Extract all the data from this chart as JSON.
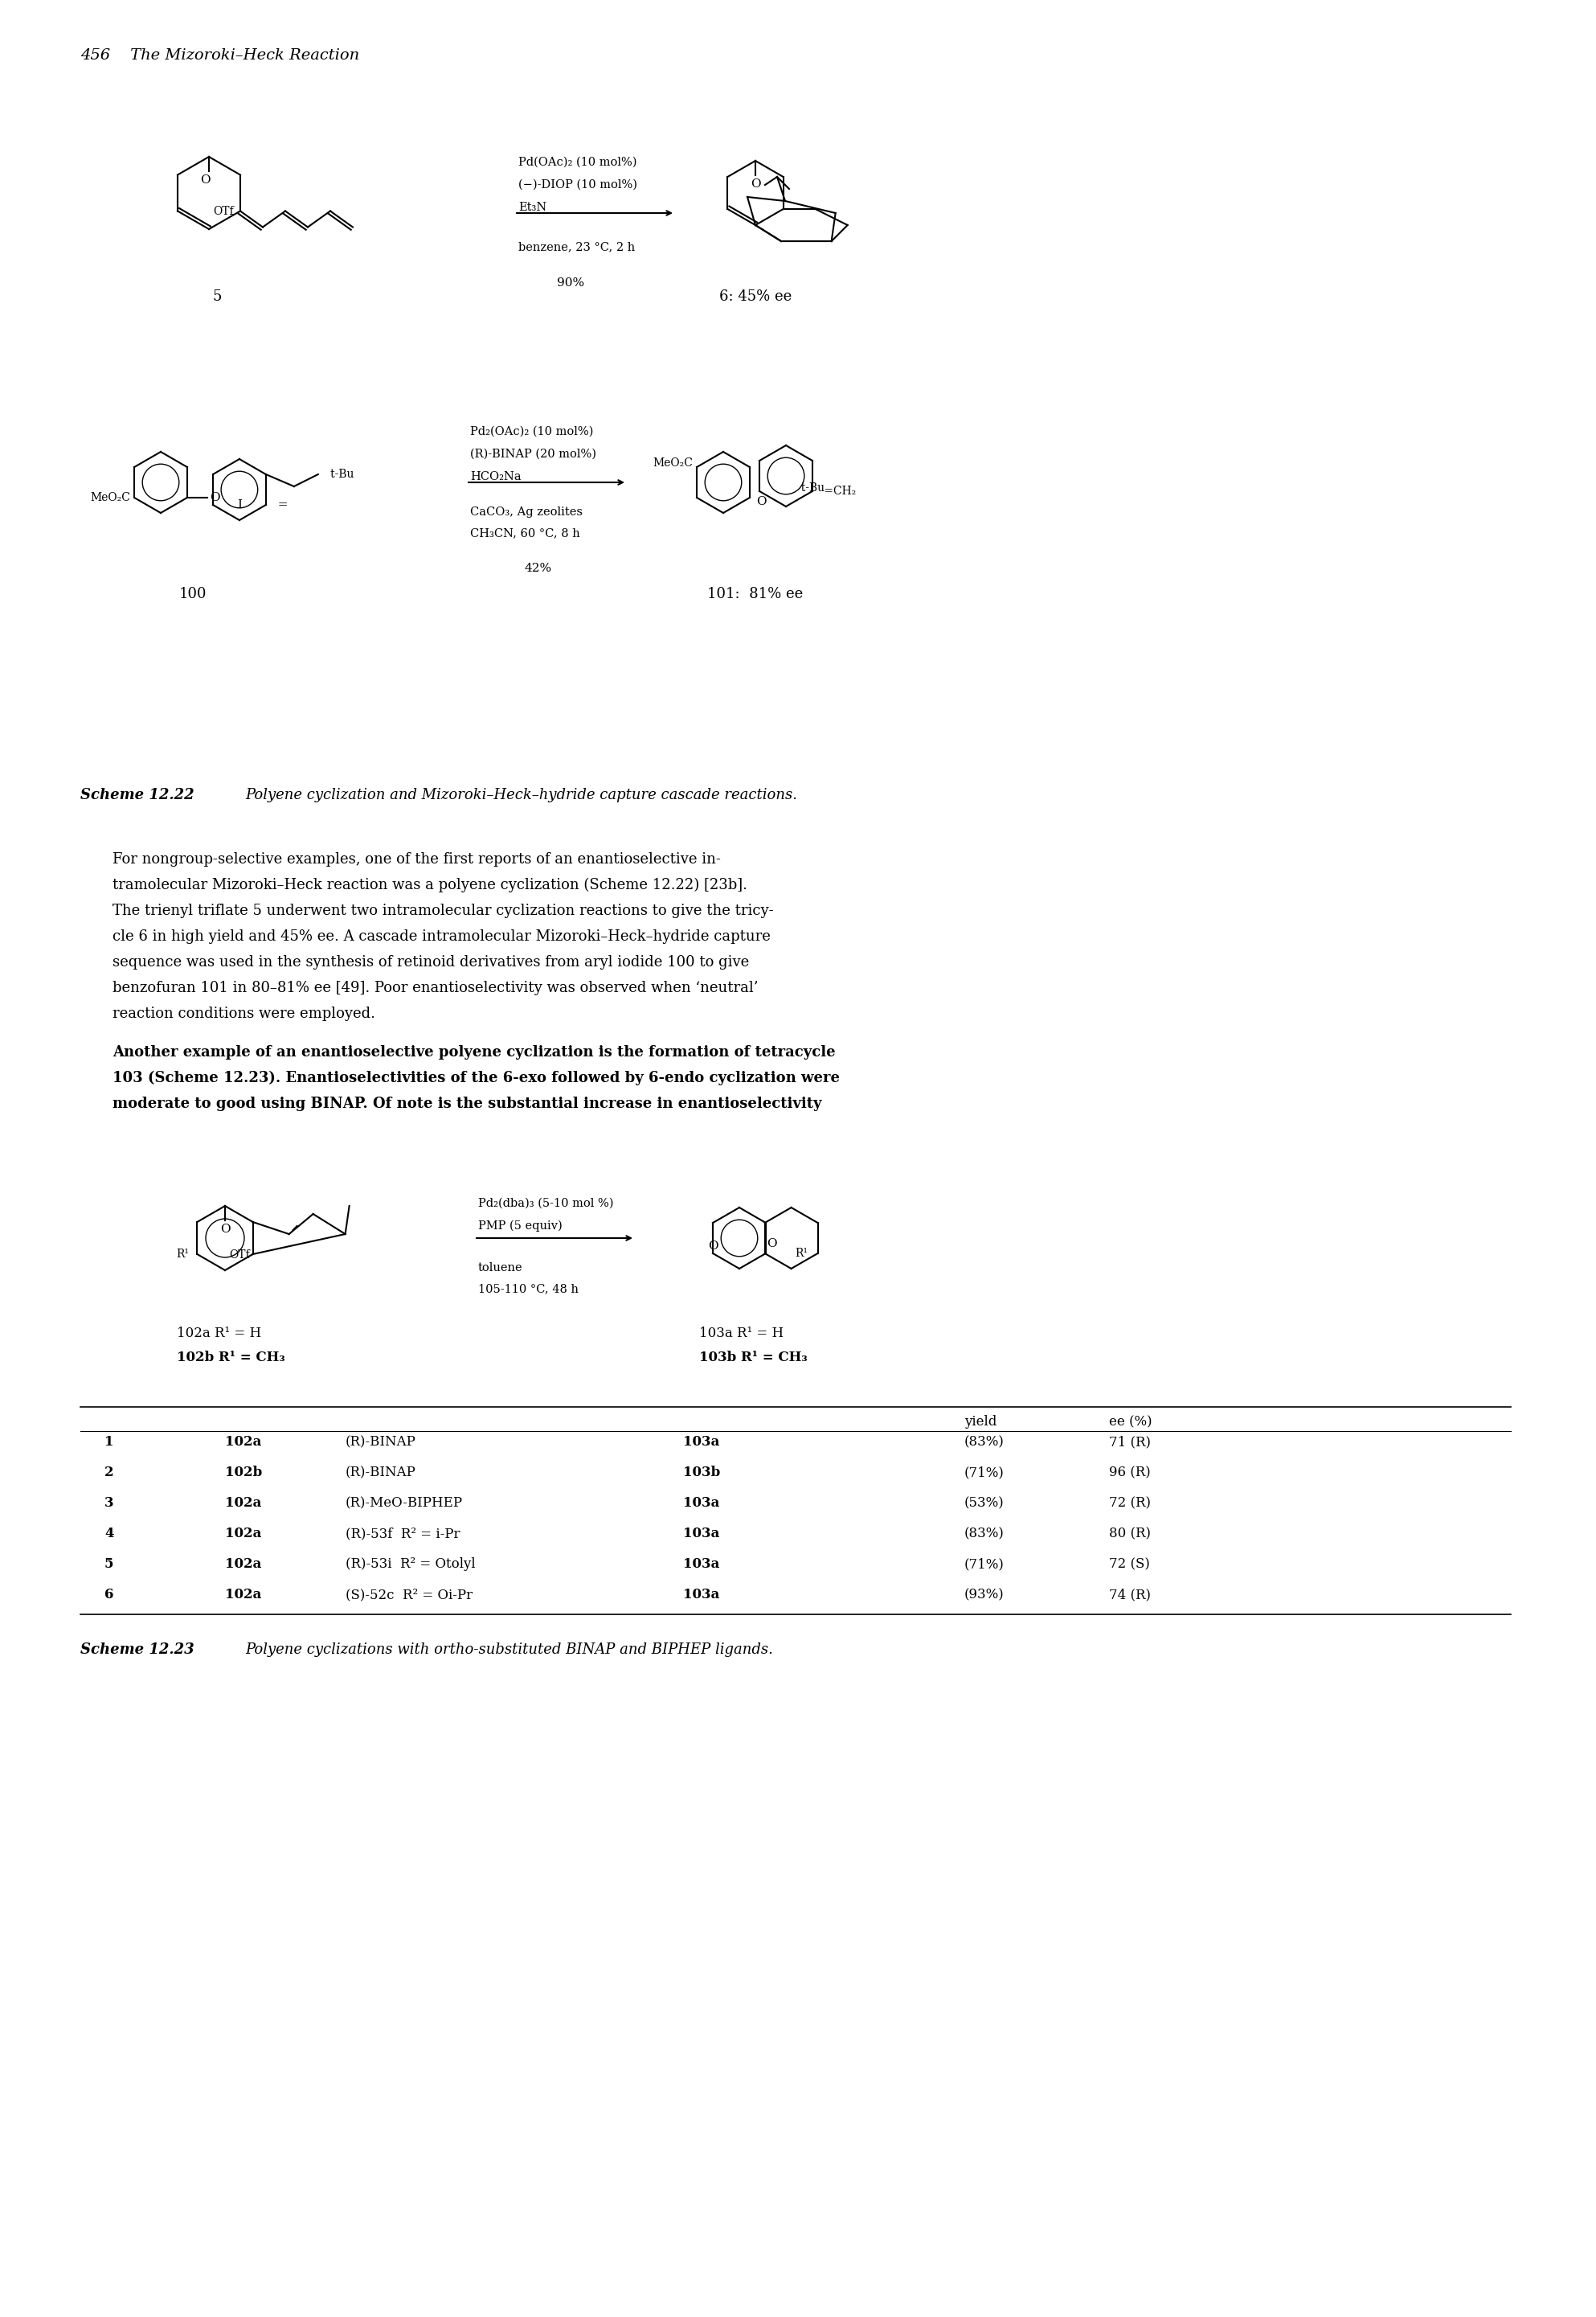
{
  "page_header": "456    The Mizoroki–Heck Reaction",
  "scheme1_label": "Scheme 12.22",
  "scheme1_caption": "Polyene cyclization and Mizoroki–Heck–hydride capture cascade reactions.",
  "scheme2_label": "Scheme 12.23",
  "scheme2_caption": "Polyene cyclizations with ortho-substituted BINAP and BIPHEP ligands.",
  "body_text": [
    "For nongroup-selective examples, one of the first reports of an enantioselective in-",
    "tramolecular Mizoroki–Heck reaction was a polyene cyclization (Scheme 12.22) [23b].",
    "The trienyl triflate 5 underwent two intramolecular cyclization reactions to give the tricy-",
    "cle 6 in high yield and 45% ee. A cascade intramolecular Mizoroki–Heck–hydride capture",
    "sequence was used in the synthesis of retinoid derivatives from aryl iodide 100 to give",
    "benzofuran 101 in 80–81% ee [49]. Poor enantioselectivity was observed when ‘neutral’",
    "reaction conditions were employed."
  ],
  "body_text2": [
    "Another example of an enantioselective polyene cyclization is the formation of tetracycle",
    "103 (Scheme 12.23). Enantioselectivities of the 6-exo followed by 6-endo cyclization were",
    "moderate to good using BINAP. Of note is the substantial increase in enantioselectivity"
  ],
  "table_headers": [
    "",
    "",
    "",
    "",
    "yield",
    "ee (%)"
  ],
  "table_rows": [
    [
      "1",
      "102a",
      "(R)-BINAP",
      "103a",
      "(83%)",
      "71 (R)"
    ],
    [
      "2",
      "102b",
      "(R)-BINAP",
      "103b",
      "(71%)",
      "96 (R)"
    ],
    [
      "3",
      "102a",
      "(R)-MeO-BIPHEP",
      "103a",
      "(53%)",
      "72 (R)"
    ],
    [
      "4",
      "102a",
      "(R)-53f  R² = i-Pr",
      "103a",
      "(83%)",
      "80 (R)"
    ],
    [
      "5",
      "102a",
      "(R)-53i  R² = Otolyl",
      "103a",
      "(71%)",
      "72 (S)"
    ],
    [
      "6",
      "102a",
      "(S)-52c  R² = Oi-Pr",
      "103a",
      "(93%)",
      "74 (R)"
    ]
  ],
  "rxn1_conditions_top": [
    "Pd(OAc)₂ (10 mol%)",
    "(−)-DIOP (10 mol%)",
    "Et₃N"
  ],
  "rxn1_conditions_bottom": [
    "benzene, 23 °C, 2 h"
  ],
  "rxn1_yield": "90%",
  "rxn1_sm_label": "5",
  "rxn1_prod_label": "6: 45% ee",
  "rxn2_conditions_top": [
    "Pd₂(OAc)₂ (10 mol%)",
    "(R)-BINAP (20 mol%)",
    "HCO₂Na"
  ],
  "rxn2_conditions_bottom": [
    "CaCO₃, Ag zeolites",
    "CH₃CN, 60 °C, 8 h"
  ],
  "rxn2_yield": "42%",
  "rxn2_sm_label": "100",
  "rxn2_prod_label": "101:  81% ee",
  "rxn3_conditions_top": [
    "Pd₂(dba)₃ (5-10 mol %)",
    "PMP (5 equiv)"
  ],
  "rxn3_conditions_bottom": [
    "toluene",
    "105-110 °C, 48 h"
  ],
  "rxn3_sm_labels": [
    "102a R¹ = H",
    "102b R¹ = CH₃"
  ],
  "rxn3_prod_labels": [
    "103a R¹ = H",
    "103b R¹ = CH₃"
  ],
  "bg_color": "#ffffff",
  "text_color": "#000000",
  "font_size_header": 14,
  "font_size_body": 13,
  "font_size_scheme": 12,
  "font_size_small": 11
}
